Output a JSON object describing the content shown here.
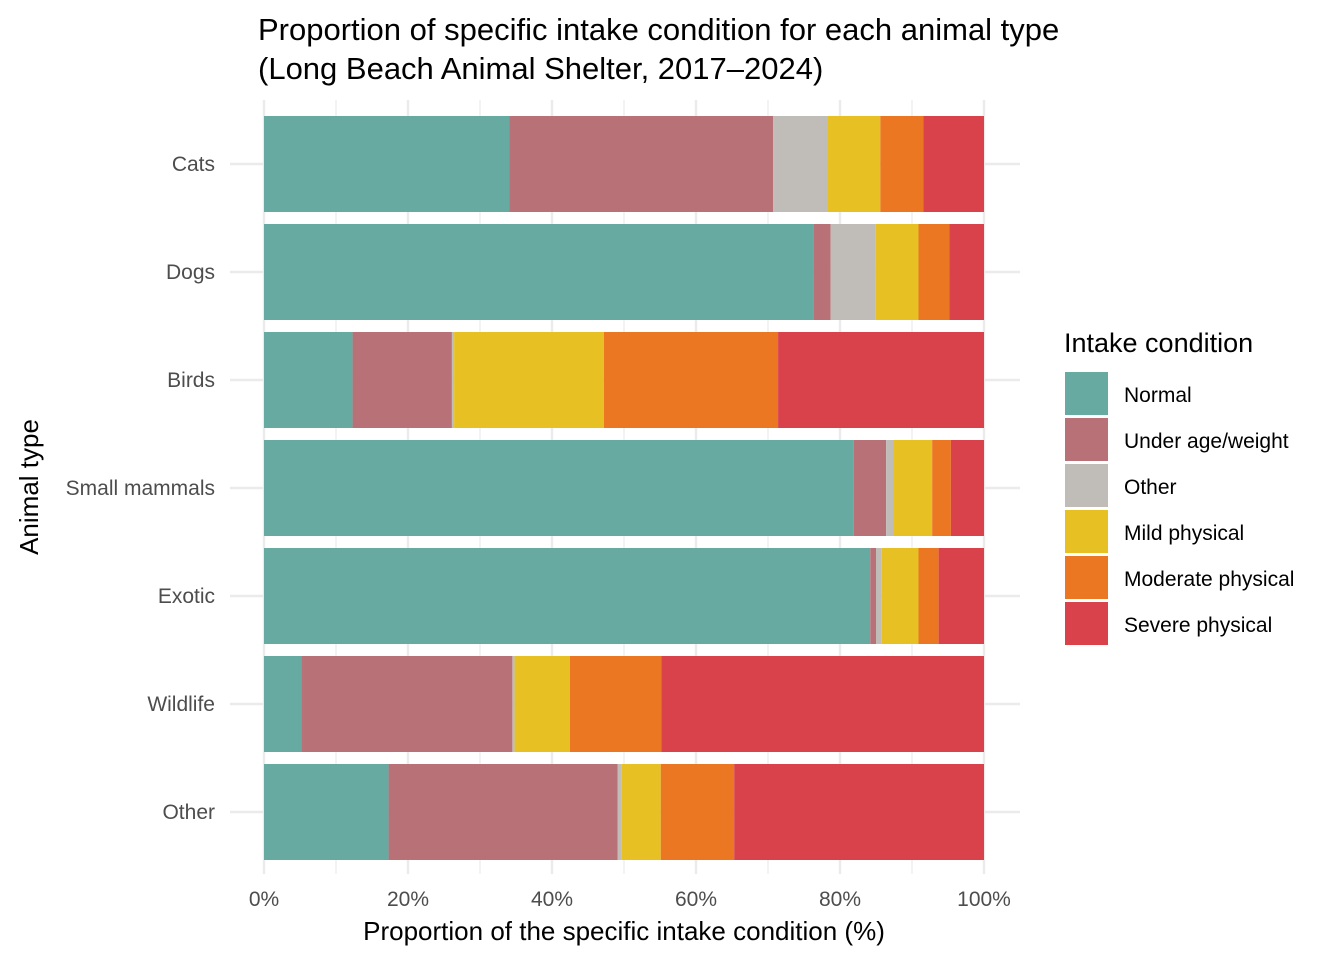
{
  "chart_data": {
    "type": "bar",
    "orientation": "horizontal",
    "stacked": true,
    "normalized": true,
    "title": "Proportion of specific intake condition for each animal type",
    "subtitle": "(Long Beach Animal Shelter, 2017–2024)",
    "xlabel": "Proportion of the specific intake condition (%)",
    "ylabel": "Animal type",
    "xlim": [
      0,
      100
    ],
    "x_ticks": [
      0,
      20,
      40,
      60,
      80,
      100
    ],
    "x_tick_labels": [
      "0%",
      "20%",
      "40%",
      "60%",
      "80%",
      "100%"
    ],
    "grid": true,
    "legend_position": "right",
    "legend_title": "Intake condition",
    "categories": [
      "Cats",
      "Dogs",
      "Birds",
      "Small mammals",
      "Exotic",
      "Wildlife",
      "Other"
    ],
    "series": [
      {
        "name": "Normal",
        "color": "#66aaa2",
        "values": [
          34.1,
          76.3,
          12.3,
          81.9,
          84.2,
          5.2,
          17.3
        ]
      },
      {
        "name": "Under age/weight",
        "color": "#b97178",
        "values": [
          36.6,
          2.4,
          13.8,
          4.5,
          0.8,
          29.3,
          31.8
        ]
      },
      {
        "name": "Other",
        "color": "#c0bdb8",
        "values": [
          7.5,
          6.2,
          0.3,
          1.1,
          0.8,
          0.3,
          0.6
        ]
      },
      {
        "name": "Mild physical",
        "color": "#e7c124",
        "values": [
          7.4,
          6.0,
          20.8,
          5.3,
          5.1,
          7.7,
          5.4
        ]
      },
      {
        "name": "Moderate physical",
        "color": "#ec7722",
        "values": [
          6.0,
          4.3,
          24.2,
          2.6,
          2.8,
          12.7,
          10.2
        ]
      },
      {
        "name": "Severe physical",
        "color": "#d9414b",
        "values": [
          8.4,
          4.8,
          28.6,
          4.6,
          6.3,
          44.8,
          34.7
        ]
      }
    ]
  }
}
